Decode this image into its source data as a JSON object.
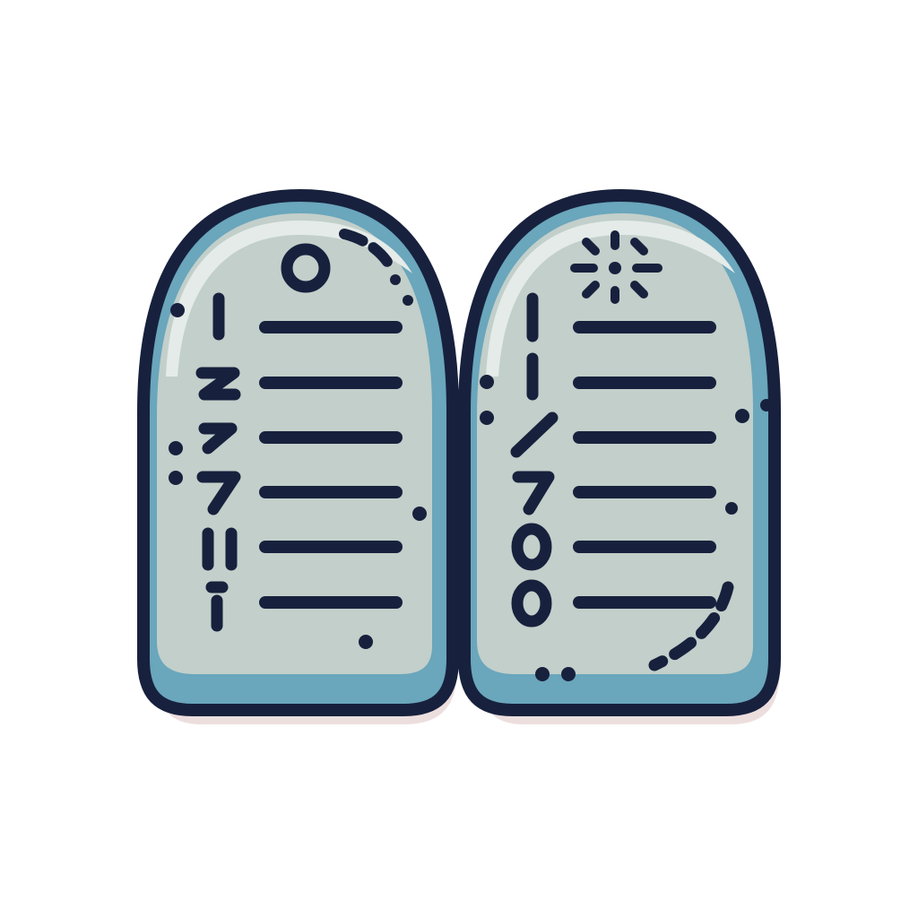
{
  "icon": {
    "name": "commandment-tablets-icon",
    "colors": {
      "outline": "#17213d",
      "face": "#c2cfca",
      "face_highlight": "#e4ebe8",
      "rim": "#6aa6bc",
      "shadow": "#ead8d8"
    },
    "left_tablet": {
      "numerals": [
        "I",
        "2",
        "2",
        "7",
        "0",
        "1"
      ],
      "line_count": 6
    },
    "right_tablet": {
      "numerals": [
        "I",
        "I",
        "/",
        "7",
        "0",
        "0"
      ],
      "line_count": 6
    }
  }
}
